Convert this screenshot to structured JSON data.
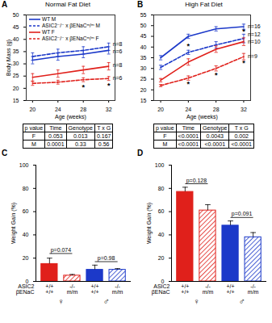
{
  "chart_data": [
    {
      "panel": "A",
      "type": "line",
      "title": "Normal Fat Diet",
      "x_label": "Age (weeks)",
      "y_label": "Body Mass (g)",
      "x": [
        20,
        24,
        28,
        32
      ],
      "xlim": [
        19,
        33
      ],
      "xticks": [
        20,
        24,
        28,
        32
      ],
      "ylim": [
        15,
        50
      ],
      "yticks": [
        15,
        20,
        25,
        30,
        35,
        40,
        45,
        50
      ],
      "legend": "top-left",
      "series": [
        {
          "name": "WT M",
          "color": "#1c39c9",
          "line_style": "solid",
          "values": [
            31.5,
            33,
            34,
            35.5
          ],
          "error": [
            1.5,
            1.5,
            1.5,
            1.5
          ]
        },
        {
          "name": "ASIC2⁻/⁻ x βENaCᵐ/ᵐ M",
          "color": "#1c39c9",
          "line_style": "dashed",
          "values": [
            33,
            34.5,
            35.5,
            37
          ],
          "error": [
            1.5,
            1.5,
            1.5,
            1.5
          ]
        },
        {
          "name": "WT F",
          "color": "#e0201b",
          "line_style": "solid",
          "values": [
            24.5,
            26,
            27.5,
            29
          ],
          "error": [
            1.5,
            1.5,
            1.5,
            1.5
          ]
        },
        {
          "name": "ASIC2⁻/⁻ x βENaCᵐ/ᵐ F",
          "color": "#e0201b",
          "line_style": "dashed",
          "values": [
            22,
            22.5,
            23.5,
            24
          ],
          "error": [
            0.8,
            0.8,
            0.8,
            0.8
          ]
        }
      ],
      "annotations": [
        {
          "x": 28,
          "y": 20.5,
          "text": "*"
        },
        {
          "x": 32,
          "y": 21,
          "text": "*"
        }
      ],
      "n_labels": [
        {
          "x": 32,
          "y": 38,
          "text": "n=8"
        },
        {
          "x": 32,
          "y": 35,
          "text": "n=6"
        },
        {
          "x": 32,
          "y": 29.5,
          "text": "n=8"
        },
        {
          "x": 32,
          "y": 24,
          "text": "n=6"
        }
      ],
      "table": {
        "header": [
          "p value",
          "Time",
          "Genotype",
          "T x G"
        ],
        "rows": [
          [
            "F",
            "0.053",
            "0.013",
            "0.167"
          ],
          [
            "M",
            "0.0001",
            "0.33",
            "0.56"
          ]
        ]
      }
    },
    {
      "panel": "B",
      "type": "line",
      "title": "High Fat Diet",
      "x_label": "Age (weeks)",
      "x": [
        20,
        24,
        28,
        32
      ],
      "xlim": [
        19,
        33
      ],
      "xticks": [
        20,
        24,
        28,
        32
      ],
      "ylim": [
        15,
        55
      ],
      "yticks": [
        15,
        20,
        25,
        30,
        35,
        40,
        45,
        50,
        55
      ],
      "series": [
        {
          "color": "#1c39c9",
          "line_style": "solid",
          "values": [
            35,
            45,
            48.5,
            49.5
          ],
          "error": [
            1,
            1,
            1,
            1.2
          ]
        },
        {
          "color": "#1c39c9",
          "line_style": "dashed",
          "values": [
            30.5,
            37.5,
            41,
            44
          ],
          "error": [
            1,
            1,
            1.5,
            2
          ]
        },
        {
          "color": "#e0201b",
          "line_style": "solid",
          "values": [
            24.5,
            33,
            39,
            42.5
          ],
          "error": [
            0.8,
            1.5,
            1.5,
            1.8
          ]
        },
        {
          "color": "#e0201b",
          "line_style": "dashed",
          "values": [
            22,
            25.5,
            30,
            35.5
          ],
          "error": [
            0.5,
            1,
            1.2,
            1.5
          ]
        }
      ],
      "annotations": [
        {
          "x": 24,
          "y": 40.5,
          "text": "*"
        },
        {
          "x": 32,
          "y": 47.2,
          "text": "*"
        },
        {
          "x": 24,
          "y": 22.8,
          "text": "*"
        },
        {
          "x": 28,
          "y": 27,
          "text": "*"
        },
        {
          "x": 32,
          "y": 32.5,
          "text": "*"
        }
      ],
      "n_labels": [
        {
          "x": 32,
          "y": 49.5,
          "text": "n=16"
        },
        {
          "x": 32,
          "y": 46,
          "text": "n=12"
        },
        {
          "x": 32,
          "y": 42.5,
          "text": "n=10"
        },
        {
          "x": 32,
          "y": 35.5,
          "text": "n=9"
        }
      ],
      "table": {
        "header": [
          "p value",
          "Time",
          "Genotype",
          "T x G"
        ],
        "rows": [
          [
            "F",
            "<0.0001",
            "0.0043",
            "0.002"
          ],
          [
            "M",
            "<0.0001",
            "<0.0001",
            "<0.0001"
          ]
        ]
      }
    },
    {
      "panel": "C",
      "type": "bar",
      "y_label": "Weight Gain (%)",
      "categories": [
        "+/+\n+/+",
        "-/-\nm/m",
        "+/+\n+/+",
        "-/-\nm/m"
      ],
      "values": [
        15,
        5,
        10,
        10
      ],
      "error": [
        5,
        1,
        4,
        1
      ],
      "colors": [
        "#e0201b",
        "#e0201b",
        "#1c39c9",
        "#1c39c9"
      ],
      "ylim": [
        0,
        100
      ],
      "yticks": [
        0,
        20,
        40,
        60,
        80,
        100
      ],
      "row_labels": [
        "ASIC2",
        "βENaC"
      ],
      "groups": [
        {
          "label": "♀",
          "x": [
            0,
            1
          ]
        },
        {
          "label": "♂",
          "x": [
            2,
            3
          ]
        }
      ],
      "annotations": [
        {
          "x": [
            0,
            1
          ],
          "y": 24,
          "text": "p=0.074"
        },
        {
          "x": [
            2,
            3
          ],
          "y": 17,
          "text": "p=0.98"
        }
      ]
    },
    {
      "panel": "D",
      "type": "bar",
      "y_label": "Weight Gain (%)",
      "categories": [
        "+/+\n+/+",
        "-/-\nm/m",
        "+/+\n+/+",
        "-/-\nm/m"
      ],
      "values": [
        77,
        61,
        48,
        38
      ],
      "error": [
        4,
        5,
        4,
        4
      ],
      "colors": [
        "#e0201b",
        "#e0201b",
        "#1c39c9",
        "#1c39c9"
      ],
      "ylim": [
        0,
        100
      ],
      "yticks": [
        0,
        20,
        40,
        60,
        80,
        100
      ],
      "row_labels": [
        "ASIC2",
        "βENaC"
      ],
      "groups": [
        {
          "label": "♀",
          "x": [
            0,
            1
          ]
        },
        {
          "label": "♂",
          "x": [
            2,
            3
          ]
        }
      ],
      "annotations": [
        {
          "x": [
            0,
            1
          ],
          "y": 84,
          "text": "p=0.128"
        },
        {
          "x": [
            2,
            3
          ],
          "y": 55,
          "text": "p=0.091"
        }
      ]
    }
  ]
}
